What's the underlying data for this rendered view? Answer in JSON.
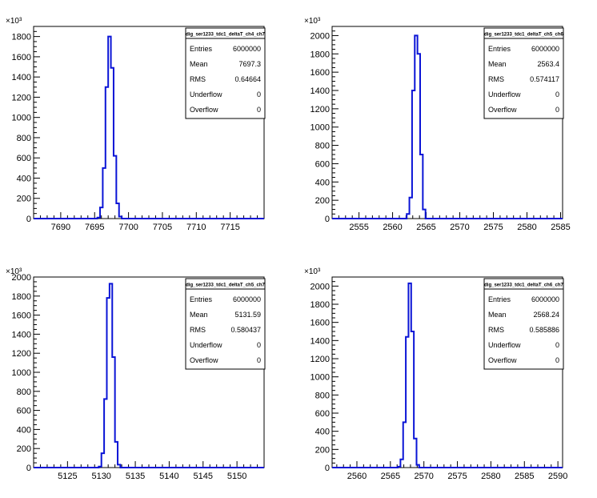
{
  "chart_data": [
    {
      "type": "histogram",
      "title": "",
      "exponent_label": "×10³",
      "stats": {
        "name": "dig_ser1233_tdc1_deltaT_ch4_ch7",
        "rows": [
          {
            "label": "Entries",
            "value": "6000000"
          },
          {
            "label": "Mean",
            "value": "7697.3"
          },
          {
            "label": "RMS",
            "value": "0.64664"
          },
          {
            "label": "Underflow",
            "value": "0"
          },
          {
            "label": "Overflow",
            "value": "0"
          }
        ]
      },
      "xlim": [
        7686,
        7720
      ],
      "ylim": [
        0,
        1900
      ],
      "xticks": [
        7690,
        7695,
        7700,
        7705,
        7710,
        7715
      ],
      "yticks": [
        0,
        200,
        400,
        600,
        800,
        1000,
        1200,
        1400,
        1600,
        1800
      ],
      "bin_edges": [
        7695.4,
        7695.8,
        7696.2,
        7696.6,
        7697.0,
        7697.4,
        7697.8,
        7698.2,
        7698.6,
        7699.0,
        7699.4
      ],
      "values": [
        10,
        110,
        500,
        1300,
        1800,
        1490,
        620,
        150,
        20,
        0
      ]
    },
    {
      "type": "histogram",
      "title": "",
      "exponent_label": "×10³",
      "stats": {
        "name": "dig_ser1233_tdc1_deltaT_ch5_ch6",
        "rows": [
          {
            "label": "Entries",
            "value": "6000000"
          },
          {
            "label": "Mean",
            "value": "2563.4"
          },
          {
            "label": "RMS",
            "value": "0.574117"
          },
          {
            "label": "Underflow",
            "value": "0"
          },
          {
            "label": "Overflow",
            "value": "0"
          }
        ]
      },
      "xlim": [
        2551,
        2585.3
      ],
      "ylim": [
        0,
        2100
      ],
      "xticks": [
        2555,
        2560,
        2565,
        2570,
        2575,
        2580,
        2585
      ],
      "yticks": [
        0,
        200,
        400,
        600,
        800,
        1000,
        1200,
        1400,
        1600,
        1800,
        2000
      ],
      "bin_edges": [
        2561.7,
        2562.1,
        2562.5,
        2562.9,
        2563.3,
        2563.7,
        2564.1,
        2564.5,
        2564.9,
        2565.3
      ],
      "values": [
        0,
        50,
        230,
        1400,
        2000,
        1800,
        700,
        100,
        0
      ]
    },
    {
      "type": "histogram",
      "title": "",
      "exponent_label": "×10³",
      "stats": {
        "name": "dig_ser1233_tdc1_deltaT_ch5_ch7",
        "rows": [
          {
            "label": "Entries",
            "value": "6000000"
          },
          {
            "label": "Mean",
            "value": "5131.59"
          },
          {
            "label": "RMS",
            "value": "0.580437"
          },
          {
            "label": "Underflow",
            "value": "0"
          },
          {
            "label": "Overflow",
            "value": "0"
          }
        ]
      },
      "xlim": [
        5120,
        5154
      ],
      "ylim": [
        0,
        2000
      ],
      "xticks": [
        5125,
        5130,
        5135,
        5140,
        5145,
        5150
      ],
      "yticks": [
        0,
        200,
        400,
        600,
        800,
        1000,
        1200,
        1400,
        1600,
        1800,
        2000
      ],
      "bin_edges": [
        5129.6,
        5130.0,
        5130.4,
        5130.8,
        5131.2,
        5131.6,
        5132.0,
        5132.4,
        5132.8,
        5133.2
      ],
      "values": [
        10,
        150,
        720,
        1780,
        1930,
        1160,
        270,
        30,
        0
      ]
    },
    {
      "type": "histogram",
      "title": "",
      "exponent_label": "×10³",
      "stats": {
        "name": "dig_ser1233_tdc1_deltaT_ch6_ch7",
        "rows": [
          {
            "label": "Entries",
            "value": "6000000"
          },
          {
            "label": "Mean",
            "value": "2568.24"
          },
          {
            "label": "RMS",
            "value": "0.585886"
          },
          {
            "label": "Underflow",
            "value": "0"
          },
          {
            "label": "Overflow",
            "value": "0"
          }
        ]
      },
      "xlim": [
        2556.3,
        2590.7
      ],
      "ylim": [
        0,
        2100
      ],
      "xticks": [
        2560,
        2565,
        2570,
        2575,
        2580,
        2585,
        2590
      ],
      "yticks": [
        0,
        200,
        400,
        600,
        800,
        1000,
        1200,
        1400,
        1600,
        1800,
        2000
      ],
      "bin_edges": [
        2566.1,
        2566.5,
        2566.9,
        2567.3,
        2567.7,
        2568.1,
        2568.5,
        2568.9,
        2569.3,
        2569.7
      ],
      "values": [
        10,
        90,
        500,
        1440,
        2030,
        1500,
        320,
        30,
        0
      ]
    }
  ]
}
